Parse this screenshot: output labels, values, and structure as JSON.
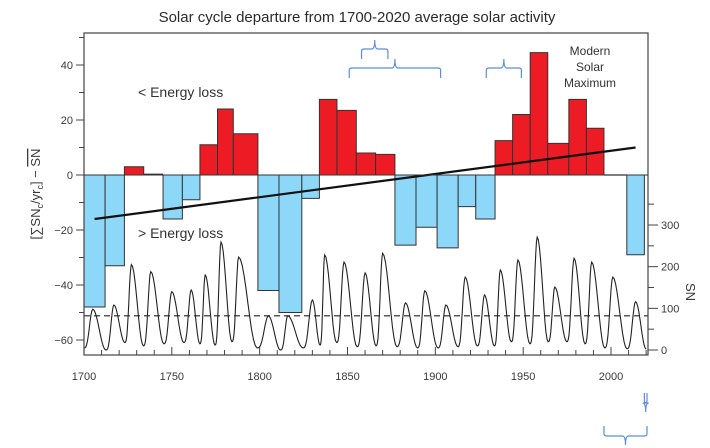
{
  "chart_data": {
    "type": "bar",
    "title": "Solar cycle departure from 1700-2020 average solar activity",
    "xlabel": "",
    "ylabel": "[∑SNₓ/yrₓ] − SN̅",
    "ylabel_parts": {
      "open": "[∑SN",
      "sub1": "c",
      "mid": "/yr",
      "sub2": "c",
      "close": "] − ",
      "bar": "SN"
    },
    "y2label": "SN",
    "xlim": [
      1700,
      2022
    ],
    "ylim": [
      -63,
      52
    ],
    "y2lim": [
      0,
      400
    ],
    "xticks": [
      1700,
      1750,
      1800,
      1850,
      1900,
      1950,
      2000
    ],
    "yticks": [
      -60,
      -40,
      -20,
      0,
      20,
      40
    ],
    "y2ticks": [
      0,
      100,
      200,
      300
    ],
    "colors": {
      "positive": "#ed1c24",
      "negative": "#8dd8f8",
      "brace": "#5b8ed6",
      "line": "#111111"
    },
    "departure_bars": [
      {
        "start": 1700,
        "end": 1712,
        "value": -48
      },
      {
        "start": 1712,
        "end": 1723,
        "value": -33
      },
      {
        "start": 1723,
        "end": 1734,
        "value": 3
      },
      {
        "start": 1734,
        "end": 1745,
        "value": 0.3
      },
      {
        "start": 1745,
        "end": 1756,
        "value": -16
      },
      {
        "start": 1756,
        "end": 1766,
        "value": -9
      },
      {
        "start": 1766,
        "end": 1776,
        "value": 11
      },
      {
        "start": 1776,
        "end": 1785,
        "value": 24
      },
      {
        "start": 1785,
        "end": 1799,
        "value": 15
      },
      {
        "start": 1799,
        "end": 1811,
        "value": -42
      },
      {
        "start": 1811,
        "end": 1824,
        "value": -50
      },
      {
        "start": 1824,
        "end": 1834,
        "value": -8.5
      },
      {
        "start": 1834,
        "end": 1844,
        "value": 27.5
      },
      {
        "start": 1844,
        "end": 1855,
        "value": 23.5
      },
      {
        "start": 1855,
        "end": 1866,
        "value": 8
      },
      {
        "start": 1866,
        "end": 1877,
        "value": 7.5
      },
      {
        "start": 1877,
        "end": 1889,
        "value": -25.5
      },
      {
        "start": 1889,
        "end": 1901,
        "value": -19
      },
      {
        "start": 1901,
        "end": 1913,
        "value": -26.5
      },
      {
        "start": 1913,
        "end": 1923,
        "value": -11.5
      },
      {
        "start": 1923,
        "end": 1934,
        "value": -16
      },
      {
        "start": 1934,
        "end": 1944,
        "value": 12.5
      },
      {
        "start": 1944,
        "end": 1954,
        "value": 22
      },
      {
        "start": 1954,
        "end": 1964,
        "value": 44.5
      },
      {
        "start": 1964,
        "end": 1976,
        "value": 11.5
      },
      {
        "start": 1976,
        "end": 1986,
        "value": 27.5
      },
      {
        "start": 1986,
        "end": 1996,
        "value": 17
      },
      {
        "start": 1996,
        "end": 2009,
        "value": 0
      },
      {
        "start": 2009,
        "end": 2019,
        "value": -29
      }
    ],
    "trend_line": {
      "x": [
        1706,
        2014
      ],
      "y": [
        -16,
        10
      ]
    },
    "sn_mean": 82,
    "sn_cycles": [
      {
        "peak_year": 1705,
        "peak": 98,
        "min": 5
      },
      {
        "peak_year": 1717,
        "peak": 108,
        "min": 0
      },
      {
        "peak_year": 1727,
        "peak": 205,
        "min": 18
      },
      {
        "peak_year": 1738,
        "peak": 188,
        "min": 10
      },
      {
        "peak_year": 1750,
        "peak": 140,
        "min": 15
      },
      {
        "peak_year": 1761,
        "peak": 144,
        "min": 18
      },
      {
        "peak_year": 1769,
        "peak": 180,
        "min": 15
      },
      {
        "peak_year": 1778,
        "peak": 259,
        "min": 12
      },
      {
        "peak_year": 1788,
        "peak": 223,
        "min": 20
      },
      {
        "peak_year": 1805,
        "peak": 82,
        "min": 5
      },
      {
        "peak_year": 1816,
        "peak": 82,
        "min": 0
      },
      {
        "peak_year": 1830,
        "peak": 120,
        "min": 5
      },
      {
        "peak_year": 1837,
        "peak": 228,
        "min": 12
      },
      {
        "peak_year": 1848,
        "peak": 211,
        "min": 18
      },
      {
        "peak_year": 1860,
        "peak": 185,
        "min": 8
      },
      {
        "peak_year": 1870,
        "peak": 232,
        "min": 10
      },
      {
        "peak_year": 1883,
        "peak": 113,
        "min": 8
      },
      {
        "peak_year": 1894,
        "peak": 142,
        "min": 5
      },
      {
        "peak_year": 1906,
        "peak": 108,
        "min": 5
      },
      {
        "peak_year": 1917,
        "peak": 175,
        "min": 8
      },
      {
        "peak_year": 1928,
        "peak": 132,
        "min": 10
      },
      {
        "peak_year": 1937,
        "peak": 192,
        "min": 10
      },
      {
        "peak_year": 1947,
        "peak": 216,
        "min": 20
      },
      {
        "peak_year": 1958,
        "peak": 271,
        "min": 15
      },
      {
        "peak_year": 1968,
        "peak": 151,
        "min": 20
      },
      {
        "peak_year": 1979,
        "peak": 220,
        "min": 20
      },
      {
        "peak_year": 1989,
        "peak": 211,
        "min": 15
      },
      {
        "peak_year": 2001,
        "peak": 175,
        "min": 5
      },
      {
        "peak_year": 2014,
        "peak": 116,
        "min": 3
      }
    ],
    "annotations": {
      "upper": "< Energy loss",
      "lower": "> Energy loss",
      "modern": [
        "Modern",
        "Solar",
        "Maximum"
      ]
    },
    "braces": [
      {
        "from": 1851,
        "to": 1903,
        "position": "top",
        "level": 2
      },
      {
        "from": 1858,
        "to": 1873,
        "position": "top",
        "level": 1
      },
      {
        "from": 1929,
        "to": 1949,
        "position": "top",
        "level": 2
      },
      {
        "from": 1996,
        "to": 2030,
        "position": "bottom",
        "level": 2
      },
      {
        "from": 2019,
        "to": 2030,
        "position": "bottom",
        "level": 1
      }
    ]
  }
}
